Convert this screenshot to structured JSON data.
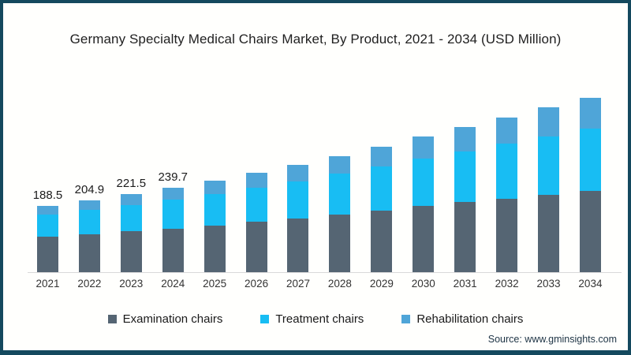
{
  "header": {
    "title": "Germany Specialty Medical Chairs Market, By Product, 2021 - 2034 (USD Million)"
  },
  "chart_data": {
    "type": "bar",
    "stacked": true,
    "title": "Germany Specialty Medical Chairs Market, By Product, 2021 - 2034 (USD Million)",
    "xlabel": "",
    "ylabel": "USD Million",
    "ylim": [
      0,
      520
    ],
    "grid": false,
    "legend_position": "bottom",
    "categories": [
      "2021",
      "2022",
      "2023",
      "2024",
      "2025",
      "2026",
      "2027",
      "2028",
      "2029",
      "2030",
      "2031",
      "2032",
      "2033",
      "2034"
    ],
    "series": [
      {
        "name": "Examination chairs",
        "color": "#556573",
        "values": [
          100.8,
          108.5,
          116.1,
          124.4,
          133.5,
          143.3,
          153.3,
          164.6,
          176.1,
          188.3,
          198.7,
          209.8,
          220.2,
          231.1
        ]
      },
      {
        "name": "Treatment chairs",
        "color": "#18bdf3",
        "values": [
          64.1,
          69.9,
          75.8,
          82.3,
          89.6,
          97.5,
          105.8,
          115.2,
          125.0,
          135.6,
          145.2,
          155.5,
          165.6,
          176.4
        ]
      },
      {
        "name": "Rehabilitation chairs",
        "color": "#4fa5d8",
        "values": [
          23.6,
          26.5,
          29.6,
          33.0,
          36.9,
          41.2,
          45.9,
          51.2,
          56.9,
          63.1,
          69.1,
          75.6,
          82.3,
          89.5
        ]
      }
    ],
    "totals": [
      188.5,
      204.9,
      221.5,
      239.7,
      260.0,
      282.0,
      305.0,
      331.0,
      358.0,
      387.0,
      413.0,
      441.0,
      468.0,
      497.0
    ],
    "bar_labels": [
      "188.5",
      "204.9",
      "221.5",
      "239.7",
      null,
      null,
      null,
      null,
      null,
      null,
      null,
      null,
      null,
      null
    ]
  },
  "colors": {
    "frame_border": "#14495e",
    "axis_line": "#d9d9d9",
    "background": "#fffffd"
  },
  "footer": {
    "source": "Source: www.gminsights.com"
  }
}
